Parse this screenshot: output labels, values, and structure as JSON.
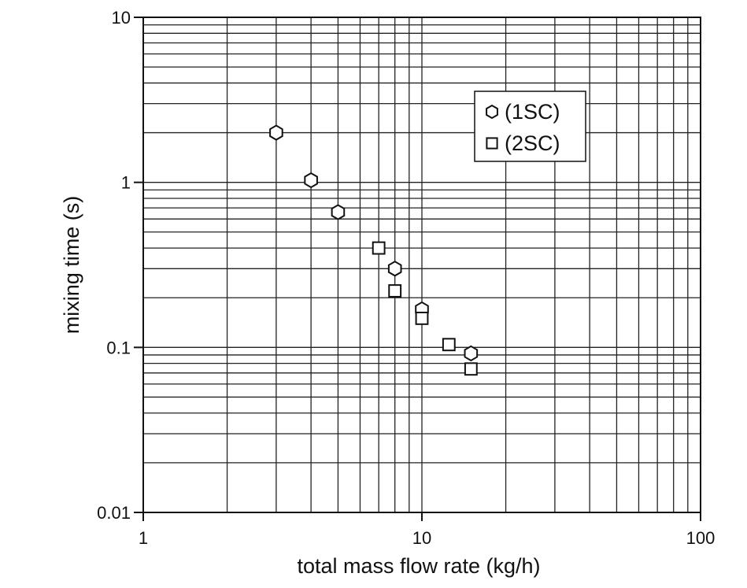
{
  "chart_data": {
    "type": "scatter",
    "xlabel": "total mass flow rate (kg/h)",
    "ylabel": "mixing time (s)",
    "x_scale": "log",
    "y_scale": "log",
    "xlim": [
      1,
      100
    ],
    "ylim": [
      0.01,
      10
    ],
    "grid": true,
    "x_ticks": [
      {
        "value": 1,
        "label": "1"
      },
      {
        "value": 10,
        "label": "10"
      },
      {
        "value": 100,
        "label": "100"
      }
    ],
    "y_ticks": [
      {
        "value": 0.01,
        "label": "0.01"
      },
      {
        "value": 0.1,
        "label": "0.1"
      },
      {
        "value": 1,
        "label": "1"
      },
      {
        "value": 10,
        "label": "10"
      }
    ],
    "legend_position": "top-right",
    "series": [
      {
        "name": "(1SC)",
        "marker": "hexagon",
        "points": [
          {
            "x": 3,
            "y": 2.0
          },
          {
            "x": 4,
            "y": 1.03
          },
          {
            "x": 5,
            "y": 0.66
          },
          {
            "x": 8,
            "y": 0.3
          },
          {
            "x": 10,
            "y": 0.17
          },
          {
            "x": 15,
            "y": 0.092
          }
        ]
      },
      {
        "name": "(2SC)",
        "marker": "square",
        "points": [
          {
            "x": 7,
            "y": 0.4
          },
          {
            "x": 8,
            "y": 0.22
          },
          {
            "x": 10,
            "y": 0.15
          },
          {
            "x": 12.5,
            "y": 0.104
          },
          {
            "x": 15,
            "y": 0.074
          }
        ]
      }
    ]
  }
}
